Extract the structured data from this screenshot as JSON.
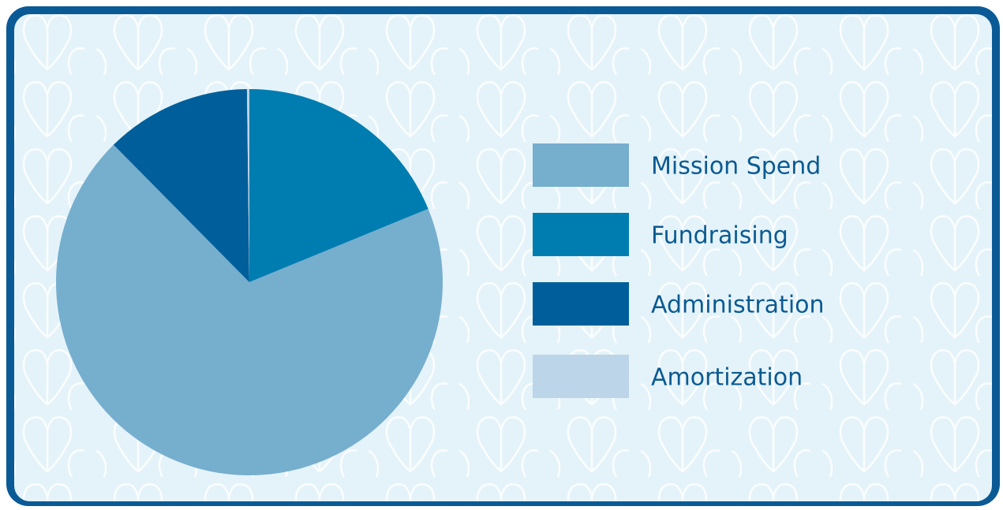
{
  "chart_data": {
    "type": "pie",
    "categories": [
      "Mission Spend",
      "Fundraising",
      "Administration",
      "Amortization"
    ],
    "values": [
      68.8,
      18.8,
      12.2,
      0.2
    ],
    "colors": [
      "#76aece",
      "#007db0",
      "#005f9a",
      "#bcd5e8"
    ],
    "legend": "right"
  }
}
